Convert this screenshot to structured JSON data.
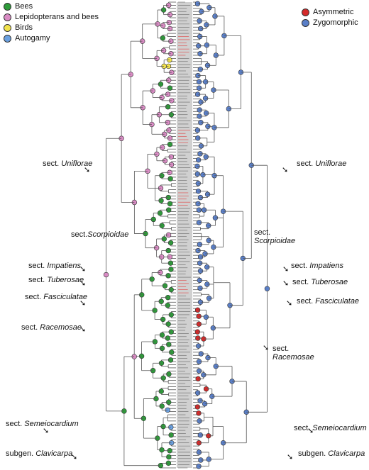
{
  "legend_left": [
    {
      "label": "Bees",
      "color": "#2e9b3a"
    },
    {
      "label": "Lepidopterans and bees",
      "color": "#d98bc4"
    },
    {
      "label": "Birds",
      "color": "#f2e34c"
    },
    {
      "label": "Autogamy",
      "color": "#6aa0e0"
    }
  ],
  "legend_right": [
    {
      "label": "Asymmetric",
      "color": "#d42a2a"
    },
    {
      "label": "Zygomorphic",
      "color": "#5a7fc8"
    }
  ],
  "sections_left": [
    {
      "prefix": "sect.",
      "name": "Uniflorae"
    },
    {
      "prefix": "sect.",
      "name": "Scorpioidae"
    },
    {
      "prefix": "sect.",
      "name": "Impatiens"
    },
    {
      "prefix": "sect.",
      "name": "Tuberosae"
    },
    {
      "prefix": "sect.",
      "name": "Fasciculatae"
    },
    {
      "prefix": "sect.",
      "name": "Racemosae"
    },
    {
      "prefix": "sect.",
      "name": "Semeiocardium"
    },
    {
      "prefix": "subgen.",
      "name": "Clavicarpa"
    }
  ],
  "sections_right": [
    {
      "prefix": "sect.",
      "name": "Uniflorae"
    },
    {
      "prefix": "sect.",
      "name": "Scorpioidae"
    },
    {
      "prefix": "sect.",
      "name": "Impatiens"
    },
    {
      "prefix": "sect.",
      "name": "Tuberosae"
    },
    {
      "prefix": "sect.",
      "name": "Fasciculatae"
    },
    {
      "prefix": "sect.",
      "name": "Racemosae"
    },
    {
      "prefix": "sect.",
      "name": "Semeiocardium"
    },
    {
      "prefix": "subgen.",
      "name": "Clavicarpa"
    }
  ],
  "trait_colors": {
    "bees": "#2e9b3a",
    "lepidopterans": "#d98bc4",
    "birds": "#f2e34c",
    "autogamy": "#6aa0e0",
    "asymmetric": "#d42a2a",
    "zygomorphic": "#5a7fc8",
    "branch": "#555555",
    "tip_highlight": "#e04040"
  }
}
